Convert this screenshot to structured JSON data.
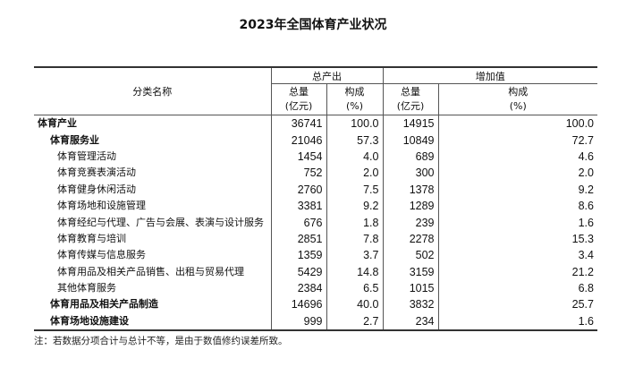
{
  "title": "2023年全国体育产业状况",
  "header": {
    "category": "分类名称",
    "group1": "总产出",
    "group2": "增加值",
    "amount": "总量",
    "amount_unit": "(亿元)",
    "share": "构成",
    "share_unit": "(%)"
  },
  "rows": [
    {
      "name": "体育产业",
      "level": 0,
      "out": "36741",
      "out_pct": "100.0",
      "va": "14915",
      "va_pct": "100.0"
    },
    {
      "name": "体育服务业",
      "level": 1,
      "out": "21046",
      "out_pct": "57.3",
      "va": "10849",
      "va_pct": "72.7"
    },
    {
      "name": "体育管理活动",
      "level": 2,
      "out": "1454",
      "out_pct": "4.0",
      "va": "689",
      "va_pct": "4.6"
    },
    {
      "name": "体育竞赛表演活动",
      "level": 2,
      "out": "752",
      "out_pct": "2.0",
      "va": "300",
      "va_pct": "2.0"
    },
    {
      "name": "体育健身休闲活动",
      "level": 2,
      "out": "2760",
      "out_pct": "7.5",
      "va": "1378",
      "va_pct": "9.2"
    },
    {
      "name": "体育场地和设施管理",
      "level": 2,
      "out": "3381",
      "out_pct": "9.2",
      "va": "1289",
      "va_pct": "8.6"
    },
    {
      "name": "体育经纪与代理、广告与会展、表演与设计服务",
      "level": 2,
      "out": "676",
      "out_pct": "1.8",
      "va": "239",
      "va_pct": "1.6"
    },
    {
      "name": "体育教育与培训",
      "level": 2,
      "out": "2851",
      "out_pct": "7.8",
      "va": "2278",
      "va_pct": "15.3"
    },
    {
      "name": "体育传媒与信息服务",
      "level": 2,
      "out": "1359",
      "out_pct": "3.7",
      "va": "502",
      "va_pct": "3.4"
    },
    {
      "name": "体育用品及相关产品销售、出租与贸易代理",
      "level": 2,
      "out": "5429",
      "out_pct": "14.8",
      "va": "3159",
      "va_pct": "21.2"
    },
    {
      "name": "其他体育服务",
      "level": 2,
      "out": "2384",
      "out_pct": "6.5",
      "va": "1015",
      "va_pct": "6.8"
    },
    {
      "name": "体育用品及相关产品制造",
      "level": 1,
      "out": "14696",
      "out_pct": "40.0",
      "va": "3832",
      "va_pct": "25.7"
    },
    {
      "name": "体育场地设施建设",
      "level": 1,
      "out": "999",
      "out_pct": "2.7",
      "va": "234",
      "va_pct": "1.6"
    }
  ],
  "note": "注：若数据分项合计与总计不等，是由于数值修约误差所致。"
}
